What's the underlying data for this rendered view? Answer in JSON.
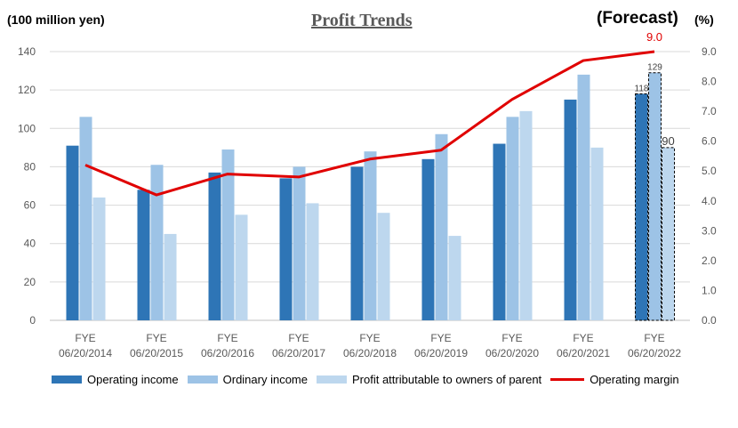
{
  "page": {
    "title": "Profit Trends",
    "unit_left": "(100 million yen)",
    "forecast_label": "(Forecast)",
    "unit_right": "(%)"
  },
  "colors": {
    "operating_income": "#2E75B6",
    "ordinary_income": "#9DC3E6",
    "profit_parent": "#BDD7EE",
    "operating_margin": "#E00000",
    "grid": "#D9D9D9",
    "axis_text": "#595959"
  },
  "chart_data": {
    "type": "bar",
    "categories": [
      [
        "FYE",
        "06/20/2014"
      ],
      [
        "FYE",
        "06/20/2015"
      ],
      [
        "FYE",
        "06/20/2016"
      ],
      [
        "FYE",
        "06/20/2017"
      ],
      [
        "FYE",
        "06/20/2018"
      ],
      [
        "FYE",
        "06/20/2019"
      ],
      [
        "FYE",
        "06/20/2020"
      ],
      [
        "FYE",
        "06/20/2021"
      ],
      [
        "FYE",
        "06/20/2022"
      ]
    ],
    "series": [
      {
        "name": "Operating income",
        "type": "bar",
        "axis": "left",
        "values": [
          91,
          68,
          77,
          74,
          80,
          84,
          92,
          115,
          118
        ]
      },
      {
        "name": "Ordinary income",
        "type": "bar",
        "axis": "left",
        "values": [
          106,
          81,
          89,
          80,
          88,
          97,
          106,
          128,
          129
        ]
      },
      {
        "name": "Profit attributable to owners of parent",
        "type": "bar",
        "axis": "left",
        "values": [
          64,
          45,
          55,
          61,
          56,
          44,
          109,
          90,
          90
        ]
      },
      {
        "name": "Operating margin",
        "type": "line",
        "axis": "right",
        "values": [
          5.2,
          4.2,
          4.9,
          4.8,
          5.4,
          5.7,
          7.4,
          8.7,
          9.0
        ]
      }
    ],
    "forecast_index": 8,
    "forecast_labels": [
      "118",
      "129",
      "90"
    ],
    "margin_label": "9.0",
    "ylim_left": [
      0,
      140
    ],
    "yticks_left": [
      "0",
      "20",
      "40",
      "60",
      "80",
      "100",
      "120",
      "140"
    ],
    "ylim_right": [
      0,
      9
    ],
    "yticks_right": [
      "0.0",
      "1.0",
      "2.0",
      "3.0",
      "4.0",
      "5.0",
      "6.0",
      "7.0",
      "8.0",
      "9.0"
    ],
    "grid": true,
    "legend_position": "bottom"
  }
}
